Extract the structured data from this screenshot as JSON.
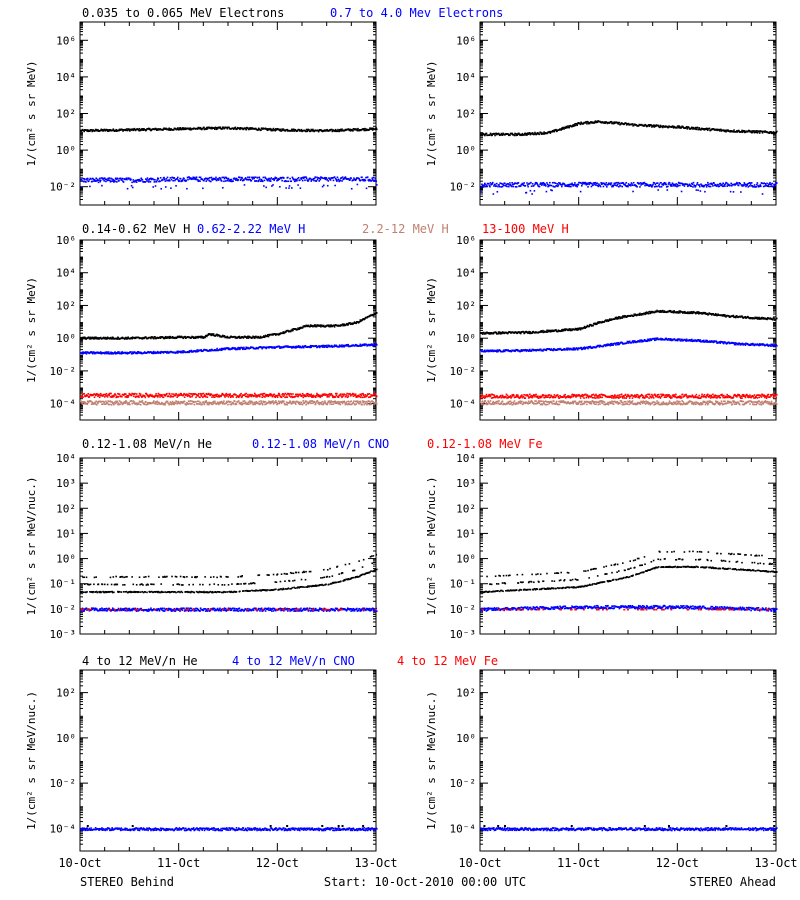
{
  "chart_data": {
    "type": "scatter",
    "x_dates": [
      "10-Oct",
      "11-Oct",
      "12-Oct",
      "13-Oct"
    ],
    "footer": {
      "left": "STEREO Behind",
      "center": "Start: 10-Oct-2010 00:00 UTC",
      "right": "STEREO Ahead"
    },
    "rows": [
      {
        "legend": [
          {
            "text": "0.035 to 0.065 MeV Electrons",
            "color": "#000000"
          },
          {
            "text": "0.7 to 4.0 Mev Electrons",
            "color": "#0000ff"
          }
        ],
        "ylabel": "1/(cm² s sr MeV)",
        "y_range_log10": [
          -3,
          7
        ],
        "y_ticks": [
          {
            "e": -2,
            "label": "10⁻²"
          },
          {
            "e": 0,
            "label": "10⁰"
          },
          {
            "e": 2,
            "label": "10²"
          },
          {
            "e": 4,
            "label": "10⁴"
          },
          {
            "e": 6,
            "label": "10⁶"
          }
        ],
        "panels": [
          {
            "name": "STEREO Behind",
            "series": [
              {
                "color": "#000000",
                "points": [
                  [
                    0,
                    1.1
                  ],
                  [
                    0.5,
                    1.15
                  ],
                  [
                    1,
                    1.2
                  ],
                  [
                    1.5,
                    1.25
                  ],
                  [
                    2,
                    1.15
                  ],
                  [
                    2.5,
                    1.1
                  ],
                  [
                    3,
                    1.2
                  ]
                ]
              },
              {
                "color": "#0000ff",
                "points": [
                  [
                    0,
                    -1.6
                  ],
                  [
                    0.5,
                    -1.6
                  ],
                  [
                    1,
                    -1.55
                  ],
                  [
                    1.5,
                    -1.55
                  ],
                  [
                    2,
                    -1.55
                  ],
                  [
                    2.5,
                    -1.55
                  ],
                  [
                    3,
                    -1.55
                  ]
                ]
              }
            ]
          },
          {
            "name": "STEREO Ahead",
            "series": [
              {
                "color": "#000000",
                "points": [
                  [
                    0,
                    0.9
                  ],
                  [
                    0.4,
                    0.9
                  ],
                  [
                    0.7,
                    1.0
                  ],
                  [
                    1,
                    1.5
                  ],
                  [
                    1.2,
                    1.6
                  ],
                  [
                    1.6,
                    1.4
                  ],
                  [
                    2,
                    1.3
                  ],
                  [
                    2.5,
                    1.1
                  ],
                  [
                    3,
                    1.0
                  ]
                ]
              },
              {
                "color": "#0000ff",
                "points": [
                  [
                    0,
                    -1.85
                  ],
                  [
                    0.5,
                    -1.85
                  ],
                  [
                    1,
                    -1.85
                  ],
                  [
                    1.5,
                    -1.85
                  ],
                  [
                    2,
                    -1.85
                  ],
                  [
                    2.5,
                    -1.85
                  ],
                  [
                    3,
                    -1.85
                  ]
                ]
              }
            ]
          }
        ]
      },
      {
        "legend": [
          {
            "text": "0.14-0.62 MeV H",
            "color": "#000000"
          },
          {
            "text": "0.62-2.22 MeV H",
            "color": "#0000ff"
          },
          {
            "text": "2.2-12 MeV H",
            "color": "#c08070"
          },
          {
            "text": "13-100 MeV H",
            "color": "#ff0000"
          }
        ],
        "ylabel": "1/(cm² s sr MeV)",
        "y_range_log10": [
          -5,
          6
        ],
        "y_ticks": [
          {
            "e": -4,
            "label": "10⁻⁴"
          },
          {
            "e": -2,
            "label": "10⁻²"
          },
          {
            "e": 0,
            "label": "10⁰"
          },
          {
            "e": 2,
            "label": "10²"
          },
          {
            "e": 4,
            "label": "10⁴"
          },
          {
            "e": 6,
            "label": "10⁶"
          }
        ],
        "panels": [
          {
            "name": "STEREO Behind",
            "series": [
              {
                "color": "#000000",
                "points": [
                  [
                    0,
                    0.05
                  ],
                  [
                    0.5,
                    0.05
                  ],
                  [
                    1,
                    0.1
                  ],
                  [
                    1.25,
                    0.1
                  ],
                  [
                    1.3,
                    0.3
                  ],
                  [
                    1.5,
                    0.1
                  ],
                  [
                    1.8,
                    0.1
                  ],
                  [
                    2.0,
                    0.3
                  ],
                  [
                    2.3,
                    0.8
                  ],
                  [
                    2.6,
                    0.8
                  ],
                  [
                    2.8,
                    1.0
                  ],
                  [
                    3,
                    1.6
                  ]
                ]
              },
              {
                "color": "#0000ff",
                "points": [
                  [
                    0,
                    -0.85
                  ],
                  [
                    0.5,
                    -0.85
                  ],
                  [
                    1,
                    -0.8
                  ],
                  [
                    1.5,
                    -0.6
                  ],
                  [
                    2,
                    -0.5
                  ],
                  [
                    2.5,
                    -0.45
                  ],
                  [
                    3,
                    -0.35
                  ]
                ]
              },
              {
                "color": "#c08070",
                "points": [
                  [
                    0,
                    -3.9
                  ],
                  [
                    1,
                    -3.9
                  ],
                  [
                    2,
                    -3.9
                  ],
                  [
                    3,
                    -3.9
                  ]
                ]
              },
              {
                "color": "#ff0000",
                "points": [
                  [
                    0,
                    -3.45
                  ],
                  [
                    1,
                    -3.45
                  ],
                  [
                    2,
                    -3.45
                  ],
                  [
                    3,
                    -3.45
                  ]
                ]
              }
            ]
          },
          {
            "name": "STEREO Ahead",
            "series": [
              {
                "color": "#000000",
                "points": [
                  [
                    0,
                    0.35
                  ],
                  [
                    0.5,
                    0.4
                  ],
                  [
                    1,
                    0.6
                  ],
                  [
                    1.2,
                    1.0
                  ],
                  [
                    1.4,
                    1.3
                  ],
                  [
                    1.6,
                    1.5
                  ],
                  [
                    1.8,
                    1.7
                  ],
                  [
                    2.2,
                    1.6
                  ],
                  [
                    2.5,
                    1.4
                  ],
                  [
                    3,
                    1.2
                  ]
                ]
              },
              {
                "color": "#0000ff",
                "points": [
                  [
                    0,
                    -0.75
                  ],
                  [
                    0.5,
                    -0.7
                  ],
                  [
                    1,
                    -0.6
                  ],
                  [
                    1.5,
                    -0.2
                  ],
                  [
                    1.8,
                    0.0
                  ],
                  [
                    2.2,
                    -0.1
                  ],
                  [
                    2.6,
                    -0.3
                  ],
                  [
                    3,
                    -0.4
                  ]
                ]
              },
              {
                "color": "#c08070",
                "points": [
                  [
                    0,
                    -3.9
                  ],
                  [
                    1,
                    -3.9
                  ],
                  [
                    2,
                    -3.9
                  ],
                  [
                    3,
                    -3.9
                  ]
                ]
              },
              {
                "color": "#ff0000",
                "points": [
                  [
                    0,
                    -3.5
                  ],
                  [
                    1,
                    -3.5
                  ],
                  [
                    2,
                    -3.5
                  ],
                  [
                    3,
                    -3.5
                  ]
                ]
              }
            ]
          }
        ]
      },
      {
        "legend": [
          {
            "text": "0.12-1.08 MeV/n He",
            "color": "#000000"
          },
          {
            "text": "0.12-1.08 MeV/n CNO",
            "color": "#0000ff"
          },
          {
            "text": "0.12-1.08 MeV Fe",
            "color": "#ff0000"
          }
        ],
        "ylabel": "1/(cm² s sr MeV/nuc.)",
        "y_range_log10": [
          -3,
          4
        ],
        "y_ticks": [
          {
            "e": -3,
            "label": "10⁻³"
          },
          {
            "e": -2,
            "label": "10⁻²"
          },
          {
            "e": -1,
            "label": "10⁻¹"
          },
          {
            "e": 0,
            "label": "10⁰"
          },
          {
            "e": 1,
            "label": "10¹"
          },
          {
            "e": 2,
            "label": "10²"
          },
          {
            "e": 3,
            "label": "10³"
          },
          {
            "e": 4,
            "label": "10⁴"
          }
        ],
        "panels": [
          {
            "name": "STEREO Behind",
            "series": [
              {
                "color": "#000000",
                "points": [
                  [
                    0,
                    -1.3
                  ],
                  [
                    0.5,
                    -1.3
                  ],
                  [
                    1,
                    -1.3
                  ],
                  [
                    1.5,
                    -1.3
                  ],
                  [
                    2,
                    -1.2
                  ],
                  [
                    2.5,
                    -1.0
                  ],
                  [
                    2.8,
                    -0.7
                  ],
                  [
                    3,
                    -0.4
                  ]
                ]
              },
              {
                "color": "#0000ff",
                "points": [
                  [
                    0,
                    -2.0
                  ],
                  [
                    1,
                    -2.0
                  ],
                  [
                    2,
                    -2.0
                  ],
                  [
                    3,
                    -2.0
                  ]
                ]
              }
            ]
          },
          {
            "name": "STEREO Ahead",
            "series": [
              {
                "color": "#000000",
                "points": [
                  [
                    0,
                    -1.3
                  ],
                  [
                    0.5,
                    -1.2
                  ],
                  [
                    1,
                    -1.1
                  ],
                  [
                    1.5,
                    -0.7
                  ],
                  [
                    1.8,
                    -0.3
                  ],
                  [
                    2.2,
                    -0.3
                  ],
                  [
                    2.6,
                    -0.4
                  ],
                  [
                    3,
                    -0.5
                  ]
                ]
              },
              {
                "color": "#0000ff",
                "points": [
                  [
                    0,
                    -2.0
                  ],
                  [
                    1,
                    -1.9
                  ],
                  [
                    2,
                    -1.9
                  ],
                  [
                    3,
                    -2.0
                  ]
                ]
              }
            ]
          }
        ]
      },
      {
        "legend": [
          {
            "text": "4 to 12 MeV/n He",
            "color": "#000000"
          },
          {
            "text": "4 to 12 MeV/n CNO",
            "color": "#0000ff"
          },
          {
            "text": "4 to 12 MeV Fe",
            "color": "#ff0000"
          }
        ],
        "ylabel": "1/(cm² s sr MeV/nuc.)",
        "y_range_log10": [
          -5,
          3
        ],
        "y_ticks": [
          {
            "e": -4,
            "label": "10⁻⁴"
          },
          {
            "e": -2,
            "label": "10⁻²"
          },
          {
            "e": 0,
            "label": "10⁰"
          },
          {
            "e": 2,
            "label": "10²"
          }
        ],
        "panels": [
          {
            "name": "STEREO Behind",
            "series": [
              {
                "color": "#0000ff",
                "points": [
                  [
                    0,
                    -4.0
                  ],
                  [
                    1,
                    -4.0
                  ],
                  [
                    2,
                    -4.0
                  ],
                  [
                    3,
                    -4.0
                  ]
                ]
              }
            ]
          },
          {
            "name": "STEREO Ahead",
            "series": [
              {
                "color": "#0000ff",
                "points": [
                  [
                    0,
                    -4.0
                  ],
                  [
                    1,
                    -4.0
                  ],
                  [
                    2,
                    -4.0
                  ],
                  [
                    3,
                    -4.0
                  ]
                ]
              }
            ]
          }
        ]
      }
    ]
  }
}
